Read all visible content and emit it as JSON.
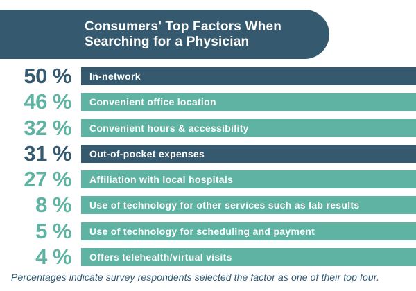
{
  "header": {
    "title_line1": "Consumers' Top Factors When",
    "title_line2": "Searching for a Physician"
  },
  "chart_data": {
    "type": "bar",
    "title": "Consumers' Top Factors When Searching for a Physician",
    "unit": "%",
    "orientation": "horizontal",
    "categories": [
      "In-network",
      "Convenient office location",
      "Convenient hours & accessibility",
      "Out-of-pocket expenses",
      "Affiliation with local hospitals",
      "Use of technology for other services such as lab results",
      "Use of technology for scheduling and payment",
      "Offers telehealth/virtual visits"
    ],
    "values": [
      50,
      46,
      32,
      31,
      27,
      8,
      5,
      4
    ],
    "highlighted_categories": [
      "In-network",
      "Out-of-pocket expenses"
    ],
    "legend": "none",
    "grid": false,
    "note": "Percentages indicate survey respondents selected the factor as one of their top four."
  },
  "rows": [
    {
      "pct": "50 %",
      "label": "In-network",
      "variant": "dark"
    },
    {
      "pct": "46 %",
      "label": "Convenient office location",
      "variant": "teal"
    },
    {
      "pct": "32 %",
      "label": "Convenient hours & accessibility",
      "variant": "teal"
    },
    {
      "pct": "31 %",
      "label": "Out-of-pocket expenses",
      "variant": "dark"
    },
    {
      "pct": "27 %",
      "label": "Affiliation with local hospitals",
      "variant": "teal"
    },
    {
      "pct": "8 %",
      "label": "Use of technology for other services such as lab results",
      "variant": "teal"
    },
    {
      "pct": "5 %",
      "label": "Use of technology for scheduling and payment",
      "variant": "teal"
    },
    {
      "pct": "4 %",
      "label": "Offers telehealth/virtual visits",
      "variant": "teal"
    }
  ],
  "footer": {
    "note": "Percentages indicate survey respondents selected the factor as one of their top four."
  },
  "colors": {
    "dark": "#35596e",
    "teal": "#5fb3a2",
    "note": "#2d5873",
    "bar_text": "#ffffff"
  }
}
